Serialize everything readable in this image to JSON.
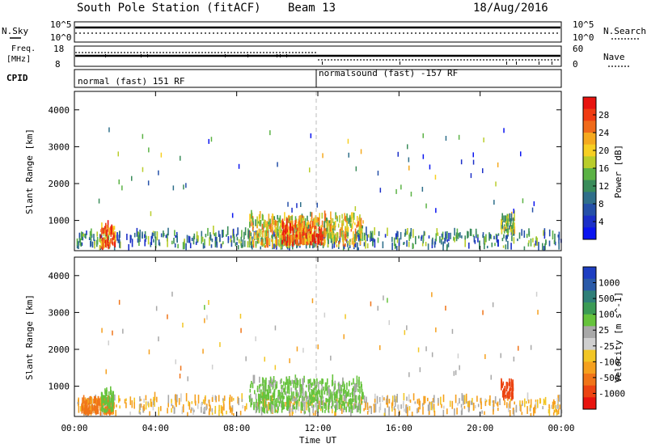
{
  "header": {
    "station": "South Pole Station (fitACF)",
    "beam": "Beam 13",
    "date": "18/Aug/2016"
  },
  "top_panels": {
    "nsky_label": "N.Sky",
    "nsky_ticks": [
      "10^5",
      "10^0"
    ],
    "nsearch_label": "N.Search",
    "nsearch_ticks": [
      "10^5",
      "10^0"
    ],
    "freq_label_1": "Freq.",
    "freq_label_2": "[MHz]",
    "freq_ticks": [
      "18",
      "8"
    ],
    "nave_label": "Nave",
    "nave_ticks": [
      "60",
      "0"
    ],
    "cpid_label": "CPID",
    "cpid_1": "normal (fast) 151 RF",
    "cpid_2": "normalsound (fast) -157 RF"
  },
  "power_colorbar": {
    "title": "Power [dB]",
    "ticks": [
      "28",
      "24",
      "20",
      "16",
      "12",
      "8",
      "4"
    ],
    "colors": [
      "#e8130f",
      "#f03b12",
      "#f06a1a",
      "#f5a91e",
      "#f7cf22",
      "#b9cd2b",
      "#5bb245",
      "#3a8c5a",
      "#2f6f8a",
      "#2550a8",
      "#1b2fc8",
      "#0a14f0"
    ]
  },
  "velocity_colorbar": {
    "title": "Velocity [m s^-1]",
    "ticks": [
      "1000",
      "500",
      "100",
      "25",
      "-25",
      "-100",
      "-500",
      "-1000"
    ],
    "colors": [
      "#1d3ec2",
      "#2a5aa8",
      "#2f7f78",
      "#3b9b55",
      "#66c33c",
      "#a8a8a8",
      "#cfcfcf",
      "#f2c625",
      "#f5a01e",
      "#f07418",
      "#ec4412",
      "#e8140f"
    ]
  },
  "chart_data": [
    {
      "type": "heatmap",
      "variable": "power",
      "ylabel": "Slant Range [km]",
      "ylim": [
        180,
        4500
      ],
      "yticks": [
        1000,
        2000,
        3000,
        4000
      ],
      "xlim": [
        0,
        24
      ],
      "xticks": [
        "00:00",
        "04:00",
        "08:00",
        "12:00",
        "16:00",
        "20:00",
        "00:00"
      ],
      "echo_regions": [
        {
          "t": [
            0.1,
            24.0
          ],
          "range": [
            190,
            620
          ],
          "value_db": 10
        },
        {
          "t": [
            1.2,
            2.0
          ],
          "range": [
            200,
            800
          ],
          "value_db": 24
        },
        {
          "t": [
            8.6,
            14.2
          ],
          "range": [
            250,
            1050
          ],
          "value_db": 18
        },
        {
          "t": [
            10.2,
            12.2
          ],
          "range": [
            300,
            850
          ],
          "value_db": 26
        },
        {
          "t": [
            21.0,
            21.7
          ],
          "range": [
            600,
            1050
          ],
          "value_db": 14
        }
      ]
    },
    {
      "type": "heatmap",
      "variable": "velocity",
      "ylabel": "Slant Range [km]",
      "ylim": [
        180,
        4500
      ],
      "yticks": [
        1000,
        2000,
        3000,
        4000
      ],
      "xlim": [
        0,
        24
      ],
      "xticks": [
        "00:00",
        "04:00",
        "08:00",
        "12:00",
        "16:00",
        "20:00",
        "00:00"
      ],
      "xlabel": "Time UT",
      "echo_regions": [
        {
          "t": [
            0.1,
            24.0
          ],
          "range": [
            190,
            620
          ],
          "value_ms": -10
        },
        {
          "t": [
            0.3,
            1.9
          ],
          "range": [
            200,
            550
          ],
          "value_ms": -150
        },
        {
          "t": [
            1.3,
            1.9
          ],
          "range": [
            250,
            800
          ],
          "value_ms": 200
        },
        {
          "t": [
            8.6,
            14.2
          ],
          "range": [
            250,
            1100
          ],
          "value_ms": 150
        },
        {
          "t": [
            21.0,
            21.6
          ],
          "range": [
            600,
            1050
          ],
          "value_ms": -400
        }
      ]
    }
  ]
}
